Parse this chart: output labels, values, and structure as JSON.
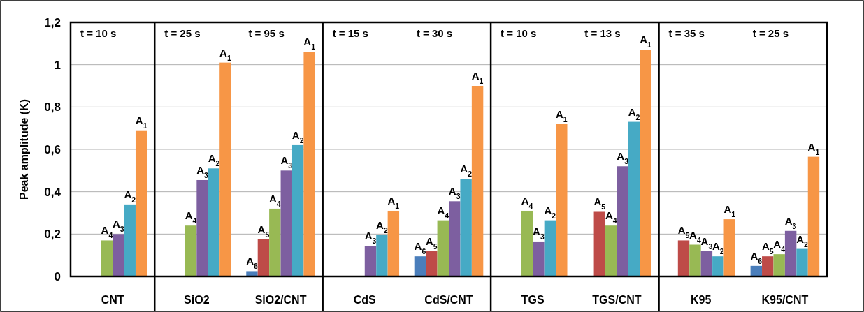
{
  "chart_data": {
    "type": "bar",
    "ylabel": "Peak amplitude (K)",
    "categories": [
      "CNT",
      "SiO2",
      "SiO2/CNT",
      "CdS",
      "CdS/CNT",
      "TGS",
      "TGS/CNT",
      "K95",
      "K95/CNT"
    ],
    "series": [
      {
        "name": "A$_{6}$",
        "color": "#4a7ebb",
        "values": [
          null,
          null,
          0.025,
          null,
          0.095,
          null,
          null,
          null,
          0.05
        ]
      },
      {
        "name": "A$_{5}$",
        "color": "#be4b48",
        "values": [
          null,
          null,
          0.175,
          null,
          0.12,
          null,
          0.305,
          0.17,
          0.095
        ]
      },
      {
        "name": "A$_{4}$",
        "color": "#98b954",
        "values": [
          0.17,
          0.24,
          0.32,
          null,
          0.265,
          0.31,
          0.24,
          0.15,
          0.105
        ]
      },
      {
        "name": "A$_{3}$",
        "color": "#7d5fa0",
        "values": [
          0.2,
          0.455,
          0.5,
          0.145,
          0.355,
          0.165,
          0.52,
          0.12,
          0.215
        ]
      },
      {
        "name": "A$_{2}$",
        "color": "#46aac5",
        "values": [
          0.34,
          0.51,
          0.62,
          0.195,
          0.46,
          0.265,
          0.73,
          0.095,
          0.13
        ]
      },
      {
        "name": "A$_{1}$",
        "color": "#f79646",
        "values": [
          0.69,
          1.01,
          1.06,
          0.31,
          0.9,
          0.72,
          1.07,
          0.27,
          0.565
        ]
      }
    ],
    "ylim": [
      0,
      1.2
    ],
    "yticks": [
      0,
      {
        "value": 0.2,
        "label": "0,2"
      },
      {
        "value": 0.4,
        "label": "0,4"
      },
      {
        "value": 0.6,
        "label": "0,6"
      },
      {
        "value": 0.8,
        "label": "0,8"
      },
      1,
      {
        "value": 1.2,
        "label": "1,2"
      }
    ],
    "grid": "y",
    "legend": false,
    "annotations": [
      "t = 10 s",
      "t = 25 s",
      "t = 95 s",
      "t = 15 s",
      "t = 30 s",
      "t = 10 s",
      "t = 13 s",
      "t = 35 s",
      "t = 25 s"
    ]
  }
}
